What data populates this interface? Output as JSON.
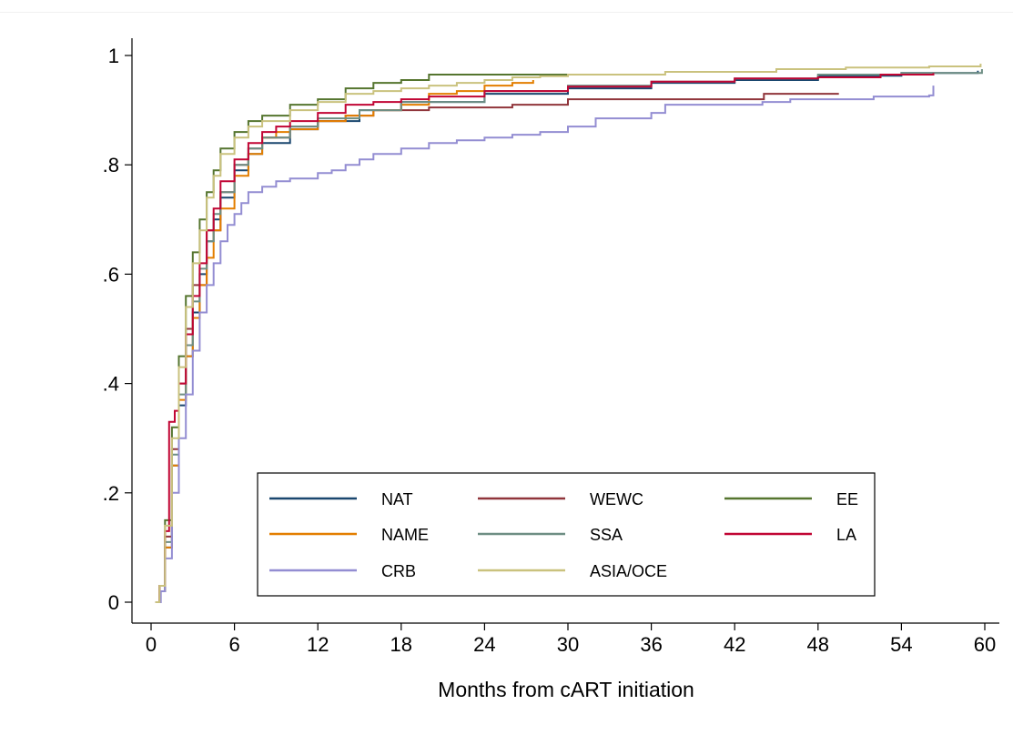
{
  "chart_data": {
    "type": "line",
    "title": "",
    "xlabel": "Months from cART initiation",
    "ylabel": "",
    "xlim": [
      0,
      60
    ],
    "ylim": [
      0,
      1
    ],
    "x_ticks": [
      0,
      6,
      12,
      18,
      24,
      30,
      36,
      42,
      48,
      54,
      60
    ],
    "x_tick_labels": [
      "0",
      "6",
      "12",
      "18",
      "24",
      "30",
      "36",
      "42",
      "48",
      "54",
      "60"
    ],
    "y_ticks": [
      0,
      0.2,
      0.4,
      0.6,
      0.8,
      1
    ],
    "y_tick_labels": [
      "0",
      ".2",
      ".4",
      ".6",
      ".8",
      "1"
    ],
    "grid": false,
    "legend_position": "bottom-inside",
    "series": [
      {
        "name": "NAT",
        "color": "#1a476f",
        "points": [
          [
            0.3,
            0
          ],
          [
            0.6,
            0.02
          ],
          [
            1,
            0.1
          ],
          [
            1.5,
            0.25
          ],
          [
            2,
            0.36
          ],
          [
            2.5,
            0.45
          ],
          [
            3,
            0.53
          ],
          [
            3.5,
            0.6
          ],
          [
            4,
            0.66
          ],
          [
            4.5,
            0.7
          ],
          [
            5,
            0.74
          ],
          [
            6,
            0.79
          ],
          [
            7,
            0.82
          ],
          [
            8,
            0.84
          ],
          [
            10,
            0.865
          ],
          [
            12,
            0.88
          ],
          [
            15,
            0.9
          ],
          [
            18,
            0.915
          ],
          [
            24,
            0.93
          ],
          [
            30,
            0.94
          ],
          [
            36,
            0.95
          ],
          [
            42,
            0.955
          ],
          [
            48,
            0.963
          ],
          [
            54,
            0.968
          ],
          [
            59.5,
            0.972
          ]
        ]
      },
      {
        "name": "WEWC",
        "color": "#90353b",
        "points": [
          [
            0.3,
            0
          ],
          [
            0.6,
            0.03
          ],
          [
            1,
            0.12
          ],
          [
            1.5,
            0.28
          ],
          [
            2,
            0.4
          ],
          [
            2.5,
            0.5
          ],
          [
            3,
            0.58
          ],
          [
            4,
            0.68
          ],
          [
            5,
            0.75
          ],
          [
            6,
            0.8
          ],
          [
            7,
            0.83
          ],
          [
            8,
            0.85
          ],
          [
            10,
            0.87
          ],
          [
            12,
            0.88
          ],
          [
            14,
            0.89
          ],
          [
            16,
            0.9
          ],
          [
            20,
            0.905
          ],
          [
            26,
            0.91
          ],
          [
            27,
            0.91
          ],
          [
            30,
            0.92
          ],
          [
            36,
            0.92
          ],
          [
            44,
            0.92
          ],
          [
            44.1,
            0.93
          ],
          [
            49.5,
            0.93
          ]
        ]
      },
      {
        "name": "EE",
        "color": "#55752f",
        "points": [
          [
            0.3,
            0
          ],
          [
            0.6,
            0.03
          ],
          [
            1,
            0.15
          ],
          [
            1.5,
            0.32
          ],
          [
            2,
            0.45
          ],
          [
            2.5,
            0.56
          ],
          [
            3,
            0.64
          ],
          [
            3.5,
            0.7
          ],
          [
            4,
            0.75
          ],
          [
            4.5,
            0.79
          ],
          [
            5,
            0.83
          ],
          [
            6,
            0.86
          ],
          [
            7,
            0.88
          ],
          [
            8,
            0.89
          ],
          [
            10,
            0.91
          ],
          [
            12,
            0.92
          ],
          [
            14,
            0.94
          ],
          [
            16,
            0.95
          ],
          [
            18,
            0.955
          ],
          [
            20,
            0.965
          ],
          [
            25,
            0.965
          ],
          [
            33.5,
            0.965
          ]
        ]
      },
      {
        "name": "NAME",
        "color": "#e37e00",
        "points": [
          [
            0.3,
            0
          ],
          [
            0.6,
            0.02
          ],
          [
            1,
            0.1
          ],
          [
            1.5,
            0.25
          ],
          [
            2,
            0.37
          ],
          [
            2.5,
            0.45
          ],
          [
            3,
            0.52
          ],
          [
            3.5,
            0.58
          ],
          [
            4,
            0.63
          ],
          [
            4.5,
            0.68
          ],
          [
            5,
            0.72
          ],
          [
            6,
            0.78
          ],
          [
            7,
            0.82
          ],
          [
            8,
            0.85
          ],
          [
            9,
            0.86
          ],
          [
            10,
            0.865
          ],
          [
            12,
            0.88
          ],
          [
            14,
            0.89
          ],
          [
            16,
            0.9
          ],
          [
            18,
            0.91
          ],
          [
            20,
            0.93
          ],
          [
            22,
            0.935
          ],
          [
            24,
            0.945
          ],
          [
            26,
            0.95
          ],
          [
            27.5,
            0.955
          ]
        ]
      },
      {
        "name": "SSA",
        "color": "#6e8e84",
        "points": [
          [
            0.3,
            0
          ],
          [
            0.6,
            0.02
          ],
          [
            1,
            0.11
          ],
          [
            1.5,
            0.27
          ],
          [
            2,
            0.38
          ],
          [
            2.5,
            0.47
          ],
          [
            3,
            0.55
          ],
          [
            3.5,
            0.61
          ],
          [
            4,
            0.66
          ],
          [
            4.5,
            0.71
          ],
          [
            5,
            0.75
          ],
          [
            6,
            0.8
          ],
          [
            7,
            0.83
          ],
          [
            8,
            0.85
          ],
          [
            10,
            0.87
          ],
          [
            12,
            0.885
          ],
          [
            15,
            0.9
          ],
          [
            18,
            0.915
          ],
          [
            24,
            0.935
          ],
          [
            30,
            0.945
          ],
          [
            36,
            0.952
          ],
          [
            42,
            0.958
          ],
          [
            48,
            0.965
          ],
          [
            54,
            0.968
          ],
          [
            59.8,
            0.975
          ]
        ]
      },
      {
        "name": "LA",
        "color": "#c10534",
        "points": [
          [
            0.3,
            0
          ],
          [
            0.6,
            0.03
          ],
          [
            1,
            0.13
          ],
          [
            1.3,
            0.33
          ],
          [
            1.7,
            0.35
          ],
          [
            2,
            0.4
          ],
          [
            2.5,
            0.49
          ],
          [
            3,
            0.56
          ],
          [
            3.5,
            0.62
          ],
          [
            4,
            0.68
          ],
          [
            4.5,
            0.72
          ],
          [
            5,
            0.77
          ],
          [
            6,
            0.81
          ],
          [
            7,
            0.84
          ],
          [
            8,
            0.86
          ],
          [
            9,
            0.87
          ],
          [
            10,
            0.88
          ],
          [
            12,
            0.895
          ],
          [
            14,
            0.91
          ],
          [
            16,
            0.915
          ],
          [
            18,
            0.92
          ],
          [
            20,
            0.925
          ],
          [
            24,
            0.935
          ],
          [
            30,
            0.943
          ],
          [
            36,
            0.952
          ],
          [
            42,
            0.958
          ],
          [
            48,
            0.96
          ],
          [
            52,
            0.96
          ],
          [
            52.5,
            0.965
          ],
          [
            56,
            0.965
          ],
          [
            56.3,
            0.968
          ]
        ]
      },
      {
        "name": "CRB",
        "color": "#938dd2",
        "points": [
          [
            0.3,
            0
          ],
          [
            0.7,
            0.02
          ],
          [
            1,
            0.08
          ],
          [
            1.5,
            0.2
          ],
          [
            2,
            0.3
          ],
          [
            2.5,
            0.38
          ],
          [
            3,
            0.46
          ],
          [
            3.5,
            0.53
          ],
          [
            4,
            0.58
          ],
          [
            4.5,
            0.62
          ],
          [
            5,
            0.66
          ],
          [
            5.5,
            0.69
          ],
          [
            6,
            0.71
          ],
          [
            6.5,
            0.73
          ],
          [
            7,
            0.75
          ],
          [
            8,
            0.76
          ],
          [
            9,
            0.77
          ],
          [
            10,
            0.775
          ],
          [
            12,
            0.785
          ],
          [
            13,
            0.79
          ],
          [
            14,
            0.8
          ],
          [
            15,
            0.81
          ],
          [
            16,
            0.82
          ],
          [
            18,
            0.83
          ],
          [
            20,
            0.84
          ],
          [
            22,
            0.845
          ],
          [
            24,
            0.85
          ],
          [
            26,
            0.855
          ],
          [
            28,
            0.86
          ],
          [
            30,
            0.87
          ],
          [
            32,
            0.885
          ],
          [
            36,
            0.895
          ],
          [
            37,
            0.91
          ],
          [
            42,
            0.91
          ],
          [
            44,
            0.915
          ],
          [
            46,
            0.92
          ],
          [
            52,
            0.925
          ],
          [
            56,
            0.927
          ],
          [
            56.3,
            0.945
          ]
        ]
      },
      {
        "name": "ASIA/OCE",
        "color": "#cac27e",
        "points": [
          [
            0.3,
            0
          ],
          [
            0.6,
            0.03
          ],
          [
            1,
            0.14
          ],
          [
            1.5,
            0.3
          ],
          [
            2,
            0.43
          ],
          [
            2.5,
            0.54
          ],
          [
            3,
            0.62
          ],
          [
            3.5,
            0.68
          ],
          [
            4,
            0.74
          ],
          [
            4.5,
            0.78
          ],
          [
            5,
            0.82
          ],
          [
            6,
            0.85
          ],
          [
            7,
            0.87
          ],
          [
            8,
            0.88
          ],
          [
            10,
            0.9
          ],
          [
            12,
            0.915
          ],
          [
            14,
            0.93
          ],
          [
            16,
            0.935
          ],
          [
            18,
            0.94
          ],
          [
            20,
            0.945
          ],
          [
            22,
            0.95
          ],
          [
            24,
            0.955
          ],
          [
            26,
            0.96
          ],
          [
            28,
            0.962
          ],
          [
            30,
            0.965
          ],
          [
            37,
            0.97
          ],
          [
            45,
            0.975
          ],
          [
            50,
            0.978
          ],
          [
            56,
            0.98
          ],
          [
            59.7,
            0.985
          ]
        ]
      }
    ]
  }
}
